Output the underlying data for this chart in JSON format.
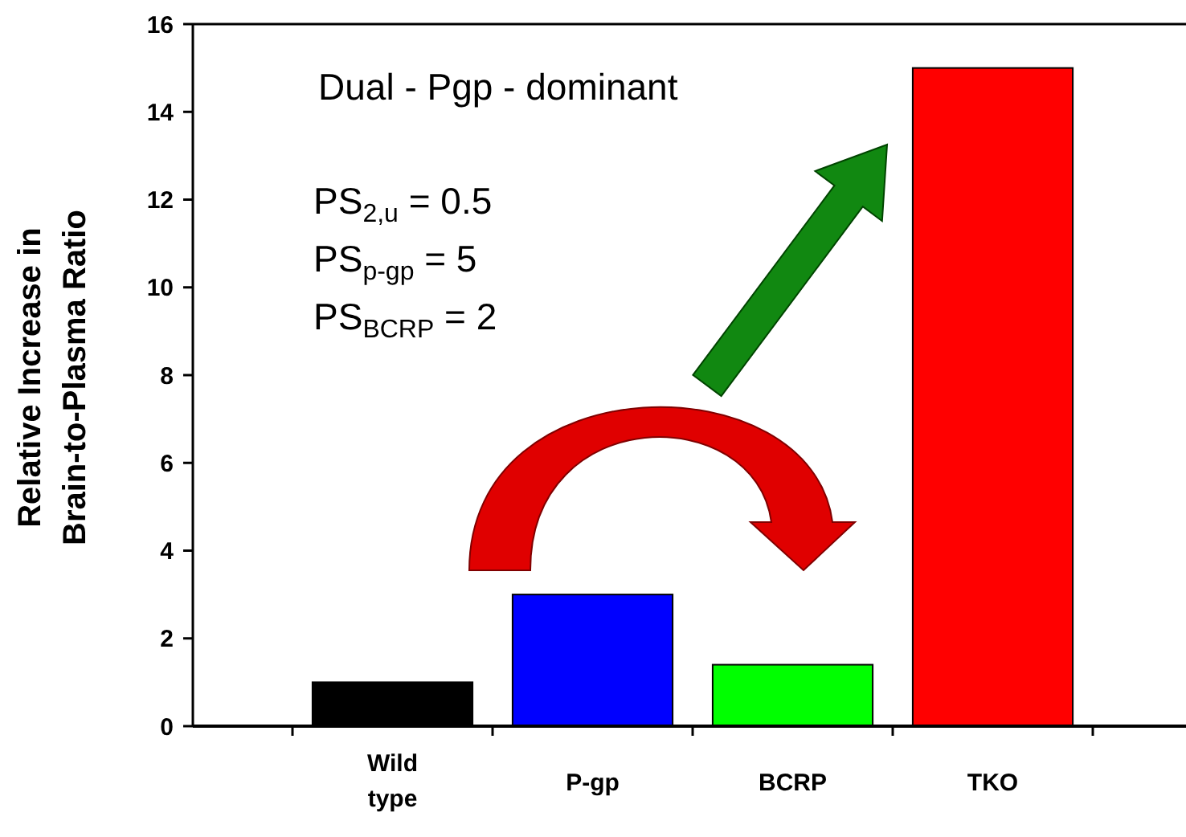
{
  "chart_data": {
    "type": "bar",
    "ylabel": "Relative Increase in\nBrain-to-Plasma Ratio",
    "categories": [
      "Wild\ntype",
      "P-gp",
      "BCRP",
      "TKO"
    ],
    "values": [
      1,
      3,
      1.4,
      15
    ],
    "colors": [
      "#000000",
      "#0000ff",
      "#00ff00",
      "#ff0000"
    ],
    "ylim": [
      0,
      16
    ],
    "yticks": [
      0,
      2,
      4,
      6,
      8,
      10,
      12,
      14,
      16
    ],
    "grid": false,
    "annotations": [
      "Dual - Pgp - dominant",
      "PS$_{2,u}$ = 0.5",
      "PS$_{p-gp}$ = 5",
      "PS$_{BCRP}$ = 2"
    ]
  }
}
